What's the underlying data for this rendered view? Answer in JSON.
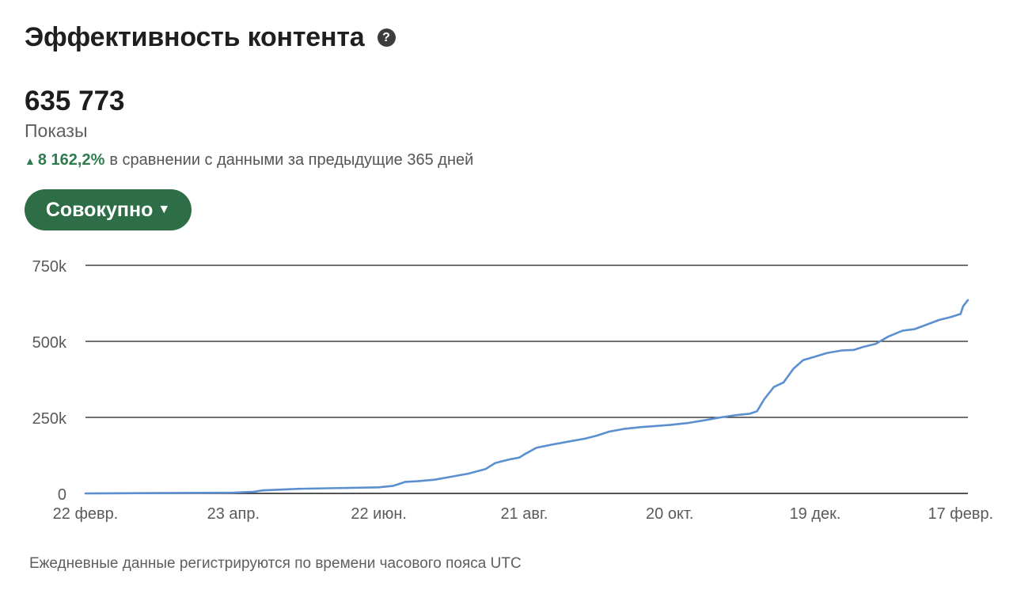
{
  "header": {
    "title": "Эффективность контента",
    "help_icon": "question-circle-icon"
  },
  "metric": {
    "value": "635 773",
    "label": "Показы",
    "change_icon": "triangle-up-icon",
    "change_pct": "8 162,2%",
    "change_text": "в сравнении с данными за предыдущие 365 дней"
  },
  "mode_selector": {
    "label": "Совокупно",
    "icon": "caret-down-icon"
  },
  "colors": {
    "accent": "#2e6e46",
    "positive": "#2e7b4f",
    "line": "#5b8fcf",
    "grid": "#1a1a1a"
  },
  "chart_data": {
    "type": "line",
    "ylim": [
      0,
      750000
    ],
    "y_ticks": [
      {
        "value": 0,
        "label": "0"
      },
      {
        "value": 250000,
        "label": "250k"
      },
      {
        "value": 500000,
        "label": "500k"
      },
      {
        "value": 750000,
        "label": "750k"
      }
    ],
    "x_range": [
      "2024-02-22",
      "2025-02-20"
    ],
    "x_ticks": [
      {
        "date": "2024-02-22",
        "label": "22 февр."
      },
      {
        "date": "2024-04-23",
        "label": "23 апр."
      },
      {
        "date": "2024-06-22",
        "label": "22 июн."
      },
      {
        "date": "2024-08-21",
        "label": "21 авг."
      },
      {
        "date": "2024-10-20",
        "label": "20 окт."
      },
      {
        "date": "2024-12-19",
        "label": "19 дек."
      },
      {
        "date": "2025-02-17",
        "label": "17 февр."
      }
    ],
    "series": [
      {
        "points": [
          [
            "2024-02-22",
            0
          ],
          [
            "2024-03-22",
            1000
          ],
          [
            "2024-04-23",
            2500
          ],
          [
            "2024-05-01",
            5000
          ],
          [
            "2024-05-05",
            10000
          ],
          [
            "2024-05-20",
            15000
          ],
          [
            "2024-06-01",
            17000
          ],
          [
            "2024-06-22",
            20000
          ],
          [
            "2024-06-28",
            25000
          ],
          [
            "2024-07-03",
            38000
          ],
          [
            "2024-07-08",
            40000
          ],
          [
            "2024-07-15",
            45000
          ],
          [
            "2024-07-22",
            55000
          ],
          [
            "2024-07-29",
            65000
          ],
          [
            "2024-08-05",
            80000
          ],
          [
            "2024-08-09",
            100000
          ],
          [
            "2024-08-15",
            112000
          ],
          [
            "2024-08-19",
            118000
          ],
          [
            "2024-08-21",
            128000
          ],
          [
            "2024-08-26",
            150000
          ],
          [
            "2024-09-01",
            160000
          ],
          [
            "2024-09-08",
            170000
          ],
          [
            "2024-09-15",
            180000
          ],
          [
            "2024-09-20",
            190000
          ],
          [
            "2024-09-25",
            203000
          ],
          [
            "2024-10-01",
            212000
          ],
          [
            "2024-10-08",
            218000
          ],
          [
            "2024-10-20",
            225000
          ],
          [
            "2024-10-28",
            232000
          ],
          [
            "2024-11-03",
            240000
          ],
          [
            "2024-11-10",
            250000
          ],
          [
            "2024-11-17",
            258000
          ],
          [
            "2024-11-22",
            262000
          ],
          [
            "2024-11-25",
            270000
          ],
          [
            "2024-11-28",
            310000
          ],
          [
            "2024-12-02",
            350000
          ],
          [
            "2024-12-06",
            365000
          ],
          [
            "2024-12-10",
            410000
          ],
          [
            "2024-12-14",
            438000
          ],
          [
            "2024-12-19",
            450000
          ],
          [
            "2024-12-24",
            462000
          ],
          [
            "2024-12-30",
            470000
          ],
          [
            "2025-01-04",
            472000
          ],
          [
            "2025-01-08",
            482000
          ],
          [
            "2025-01-13",
            492000
          ],
          [
            "2025-01-18",
            515000
          ],
          [
            "2025-01-24",
            535000
          ],
          [
            "2025-01-29",
            540000
          ],
          [
            "2025-02-03",
            555000
          ],
          [
            "2025-02-08",
            570000
          ],
          [
            "2025-02-13",
            580000
          ],
          [
            "2025-02-17",
            590000
          ],
          [
            "2025-02-18",
            615000
          ],
          [
            "2025-02-20",
            635773
          ]
        ]
      }
    ]
  },
  "footnote": "Ежедневные данные регистрируются по времени часового пояса UTC"
}
